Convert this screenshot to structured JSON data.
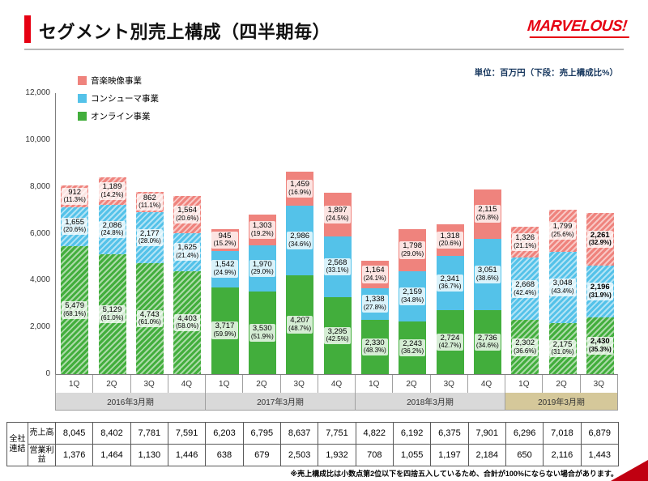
{
  "header": {
    "title": "セグメント別売上構成（四半期毎）",
    "logo_text": "MARVELOUS!"
  },
  "unit_note": "単位：百万円（下段：売上構成比%）",
  "legend": [
    {
      "key": "music",
      "label": "音楽映像事業",
      "color": "#ef837d"
    },
    {
      "key": "consumer",
      "label": "コンシューマ事業",
      "color": "#54c2e9"
    },
    {
      "key": "online",
      "label": "オンライン事業",
      "color": "#42ae3c"
    }
  ],
  "chart_data": {
    "type": "bar",
    "stacked": true,
    "title": "セグメント別売上構成（四半期毎）",
    "ylabel": "百万円",
    "ylim": [
      0,
      12000
    ],
    "ytick_step": 2000,
    "yticks": [
      "0",
      "2,000",
      "4,000",
      "6,000",
      "8,000",
      "10,000",
      "12,000"
    ],
    "categories": [
      "1Q",
      "2Q",
      "3Q",
      "4Q",
      "1Q",
      "2Q",
      "3Q",
      "4Q",
      "1Q",
      "2Q",
      "3Q",
      "4Q",
      "1Q",
      "2Q",
      "3Q"
    ],
    "hatched": [
      true,
      true,
      true,
      true,
      false,
      false,
      false,
      false,
      false,
      false,
      false,
      false,
      true,
      true,
      true
    ],
    "bold": [
      false,
      false,
      false,
      false,
      false,
      false,
      false,
      false,
      false,
      false,
      false,
      false,
      false,
      false,
      true
    ],
    "series": [
      {
        "key": "online",
        "name": "オンライン事業",
        "color": "#42ae3c",
        "values": [
          5479,
          5129,
          4743,
          4403,
          3717,
          3530,
          4207,
          3295,
          2330,
          2243,
          2724,
          2736,
          2302,
          2175,
          2430
        ],
        "pcts": [
          "68.1%",
          "61.0%",
          "61.0%",
          "58.0%",
          "59.9%",
          "51.9%",
          "48.7%",
          "42.5%",
          "48.3%",
          "36.2%",
          "42.7%",
          "34.6%",
          "36.6%",
          "31.0%",
          "35.3%"
        ]
      },
      {
        "key": "consumer",
        "name": "コンシューマ事業",
        "color": "#54c2e9",
        "values": [
          1655,
          2086,
          2177,
          1625,
          1542,
          1970,
          2986,
          2568,
          1338,
          2159,
          2341,
          3051,
          2668,
          3048,
          2196
        ],
        "pcts": [
          "20.6%",
          "24.8%",
          "28.0%",
          "21.4%",
          "24.9%",
          "29.0%",
          "34.6%",
          "33.1%",
          "27.8%",
          "34.8%",
          "36.7%",
          "38.6%",
          "42.4%",
          "43.4%",
          "31.9%"
        ]
      },
      {
        "key": "music",
        "name": "音楽映像事業",
        "color": "#ef837d",
        "values": [
          912,
          1189,
          862,
          1564,
          945,
          1303,
          1459,
          1897,
          1164,
          1798,
          1318,
          2115,
          1326,
          1799,
          2261
        ],
        "pcts": [
          "11.3%",
          "14.2%",
          "11.1%",
          "20.6%",
          "15.2%",
          "19.2%",
          "16.9%",
          "24.5%",
          "24.1%",
          "29.0%",
          "20.6%",
          "26.8%",
          "21.1%",
          "25.6%",
          "32.9%"
        ]
      }
    ],
    "fiscal_years": [
      {
        "label": "2016年3月期",
        "span": 4,
        "bg": "#d9d9d9"
      },
      {
        "label": "2017年3月期",
        "span": 4,
        "bg": "#d9d9d9"
      },
      {
        "label": "2018年3月期",
        "span": 4,
        "bg": "#d9d9d9"
      },
      {
        "label": "2019年3月期",
        "span": 3,
        "bg": "#d5c89a"
      }
    ]
  },
  "table": {
    "group_label": "全社連結",
    "rows": [
      {
        "label": "売上高",
        "values": [
          8045,
          8402,
          7781,
          7591,
          6203,
          6795,
          8637,
          7751,
          4822,
          6192,
          6375,
          7901,
          6296,
          7018,
          6879
        ]
      },
      {
        "label": "営業利益",
        "values": [
          1376,
          1464,
          1130,
          1446,
          638,
          679,
          2503,
          1932,
          708,
          1055,
          1197,
          2184,
          650,
          2116,
          1443
        ]
      }
    ]
  },
  "footnote": "※売上構成比は小数点第2位以下を四捨五入しているため、合計が100%にならない場合があります。"
}
